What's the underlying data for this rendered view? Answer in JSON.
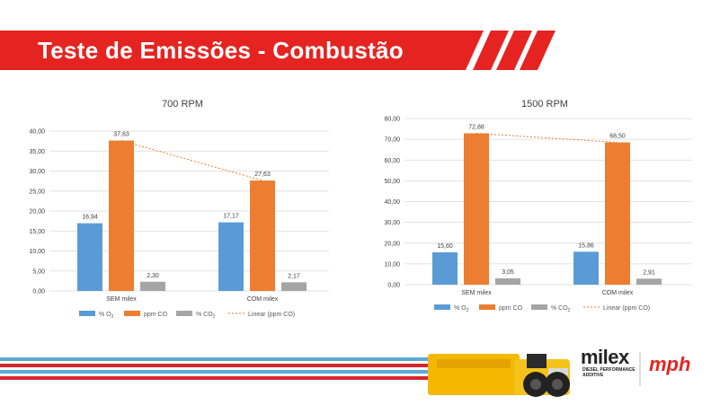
{
  "page": {
    "title": "Teste de Emissões - Combustão"
  },
  "colors": {
    "o2": "#5b9bd5",
    "co": "#ed7d31",
    "co2": "#a5a5a5",
    "banner": "#e52421",
    "footer_red": "#d7262e",
    "footer_blue": "#5aa9d8"
  },
  "chart_data": [
    {
      "type": "bar",
      "title": "700 RPM",
      "categories": [
        "SEM milex",
        "COM milex"
      ],
      "series": [
        {
          "name": "% O2",
          "values": [
            16.94,
            17.17
          ],
          "labels": [
            "16,94",
            "17,17"
          ]
        },
        {
          "name": "ppm CO",
          "values": [
            37.63,
            27.63
          ],
          "labels": [
            "37,63",
            "27,63"
          ]
        },
        {
          "name": "% CO2",
          "values": [
            2.3,
            2.17
          ],
          "labels": [
            "2,30",
            "2,17"
          ]
        }
      ],
      "trendline": {
        "name": "Linear (ppm CO)",
        "series": "ppm CO",
        "type": "linear"
      },
      "ylim": [
        0,
        40
      ],
      "yticks": [
        "0,00",
        "5,00",
        "10,00",
        "15,00",
        "20,00",
        "25,00",
        "30,00",
        "35,00",
        "40,00"
      ],
      "grid": true,
      "legend": "bottom"
    },
    {
      "type": "bar",
      "title": "1500 RPM",
      "categories": [
        "SEM milex",
        "COM milex"
      ],
      "series": [
        {
          "name": "% O2",
          "values": [
            15.6,
            15.86
          ],
          "labels": [
            "15,60",
            "15,86"
          ]
        },
        {
          "name": "ppm CO",
          "values": [
            72.88,
            68.5
          ],
          "labels": [
            "72,88",
            "68,50"
          ]
        },
        {
          "name": "% CO2",
          "values": [
            3.05,
            2.91
          ],
          "labels": [
            "3,05",
            "2,91"
          ]
        }
      ],
      "trendline": {
        "name": "Linear (ppm CO)",
        "series": "ppm CO",
        "type": "linear"
      },
      "ylim": [
        0,
        80
      ],
      "yticks": [
        "0,00",
        "10,00",
        "20,00",
        "30,00",
        "40,00",
        "50,00",
        "60,00",
        "70,00",
        "80,00"
      ],
      "grid": true,
      "legend": "bottom"
    }
  ],
  "brand": {
    "logo": "milex",
    "logo_tagline": "DIESEL PERFORMANCE ADDITIVE",
    "logo2": "mph"
  }
}
